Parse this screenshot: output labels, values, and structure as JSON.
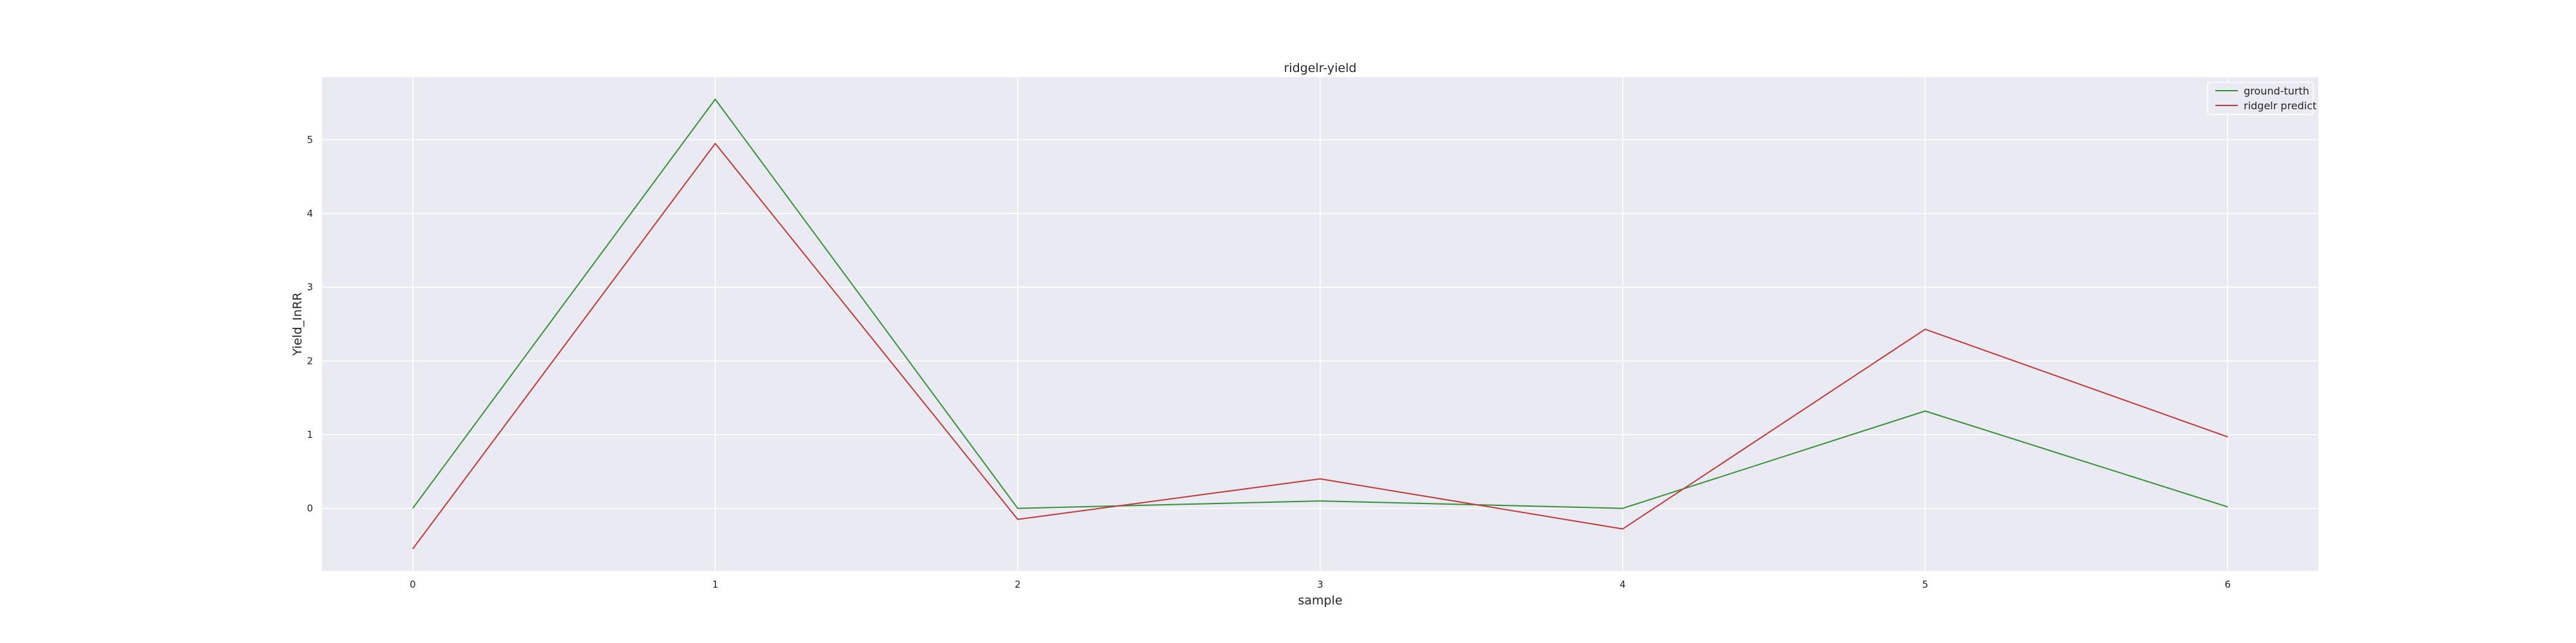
{
  "chart_data": {
    "type": "line",
    "title": "ridgelr-yield",
    "xlabel": "sample",
    "ylabel": "Yield_InRR",
    "x": [
      0,
      1,
      2,
      3,
      4,
      5,
      6
    ],
    "xlim": [
      -0.3,
      6.3
    ],
    "ylim": [
      -0.85,
      5.85
    ],
    "xticks": [
      0,
      1,
      2,
      3,
      4,
      5,
      6
    ],
    "yticks": [
      0,
      1,
      2,
      3,
      4,
      5
    ],
    "grid": true,
    "legend_position": "top-right",
    "background_color": "#eaeaf2",
    "series": [
      {
        "name": "ground-turth",
        "color": "#3a923a",
        "values": [
          0.0,
          5.55,
          0.0,
          0.1,
          0.0,
          1.32,
          0.02
        ]
      },
      {
        "name": "ridgelr predict",
        "color": "#c03d3e",
        "values": [
          -0.55,
          4.95,
          -0.15,
          0.4,
          -0.28,
          2.43,
          0.97
        ]
      }
    ]
  }
}
